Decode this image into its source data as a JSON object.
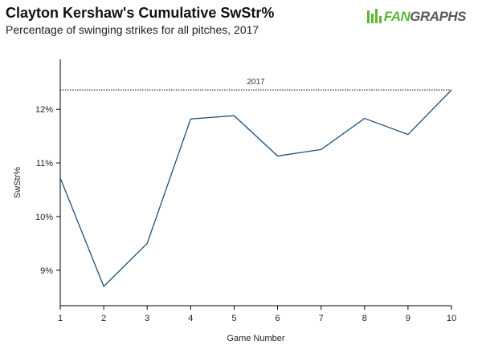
{
  "header": {
    "title": "Clayton Kershaw's Cumulative SwStr%",
    "subtitle": "Percentage of swinging strikes for all pitches, 2017"
  },
  "logo": {
    "icon": "fangraphs-logo-icon",
    "text_accent": "FAN",
    "text_main": "GRAPHS"
  },
  "chart_data": {
    "type": "line",
    "title": "Clayton Kershaw's Cumulative SwStr%",
    "subtitle": "Percentage of swinging strikes for all pitches, 2017",
    "xlabel": "Game Number",
    "ylabel": "SwStr%",
    "x": [
      1,
      2,
      3,
      4,
      5,
      6,
      7,
      8,
      9,
      10
    ],
    "series": [
      {
        "values": [
          10.72,
          8.7,
          9.5,
          11.82,
          11.88,
          11.13,
          11.25,
          11.83,
          11.53,
          12.36
        ]
      }
    ],
    "xticks": [
      "1",
      "2",
      "3",
      "4",
      "5",
      "6",
      "7",
      "8",
      "9",
      "10"
    ],
    "yticks": [
      {
        "value": 9,
        "label": "9%"
      },
      {
        "value": 10,
        "label": "10%"
      },
      {
        "value": 11,
        "label": "11%"
      },
      {
        "value": 12,
        "label": "12%"
      }
    ],
    "xlim": [
      1,
      10
    ],
    "ylim": [
      8.34,
      12.93
    ],
    "reference_line": {
      "value": 12.36,
      "label": "2017"
    },
    "line_color": "#1f4e79",
    "grid": false
  }
}
